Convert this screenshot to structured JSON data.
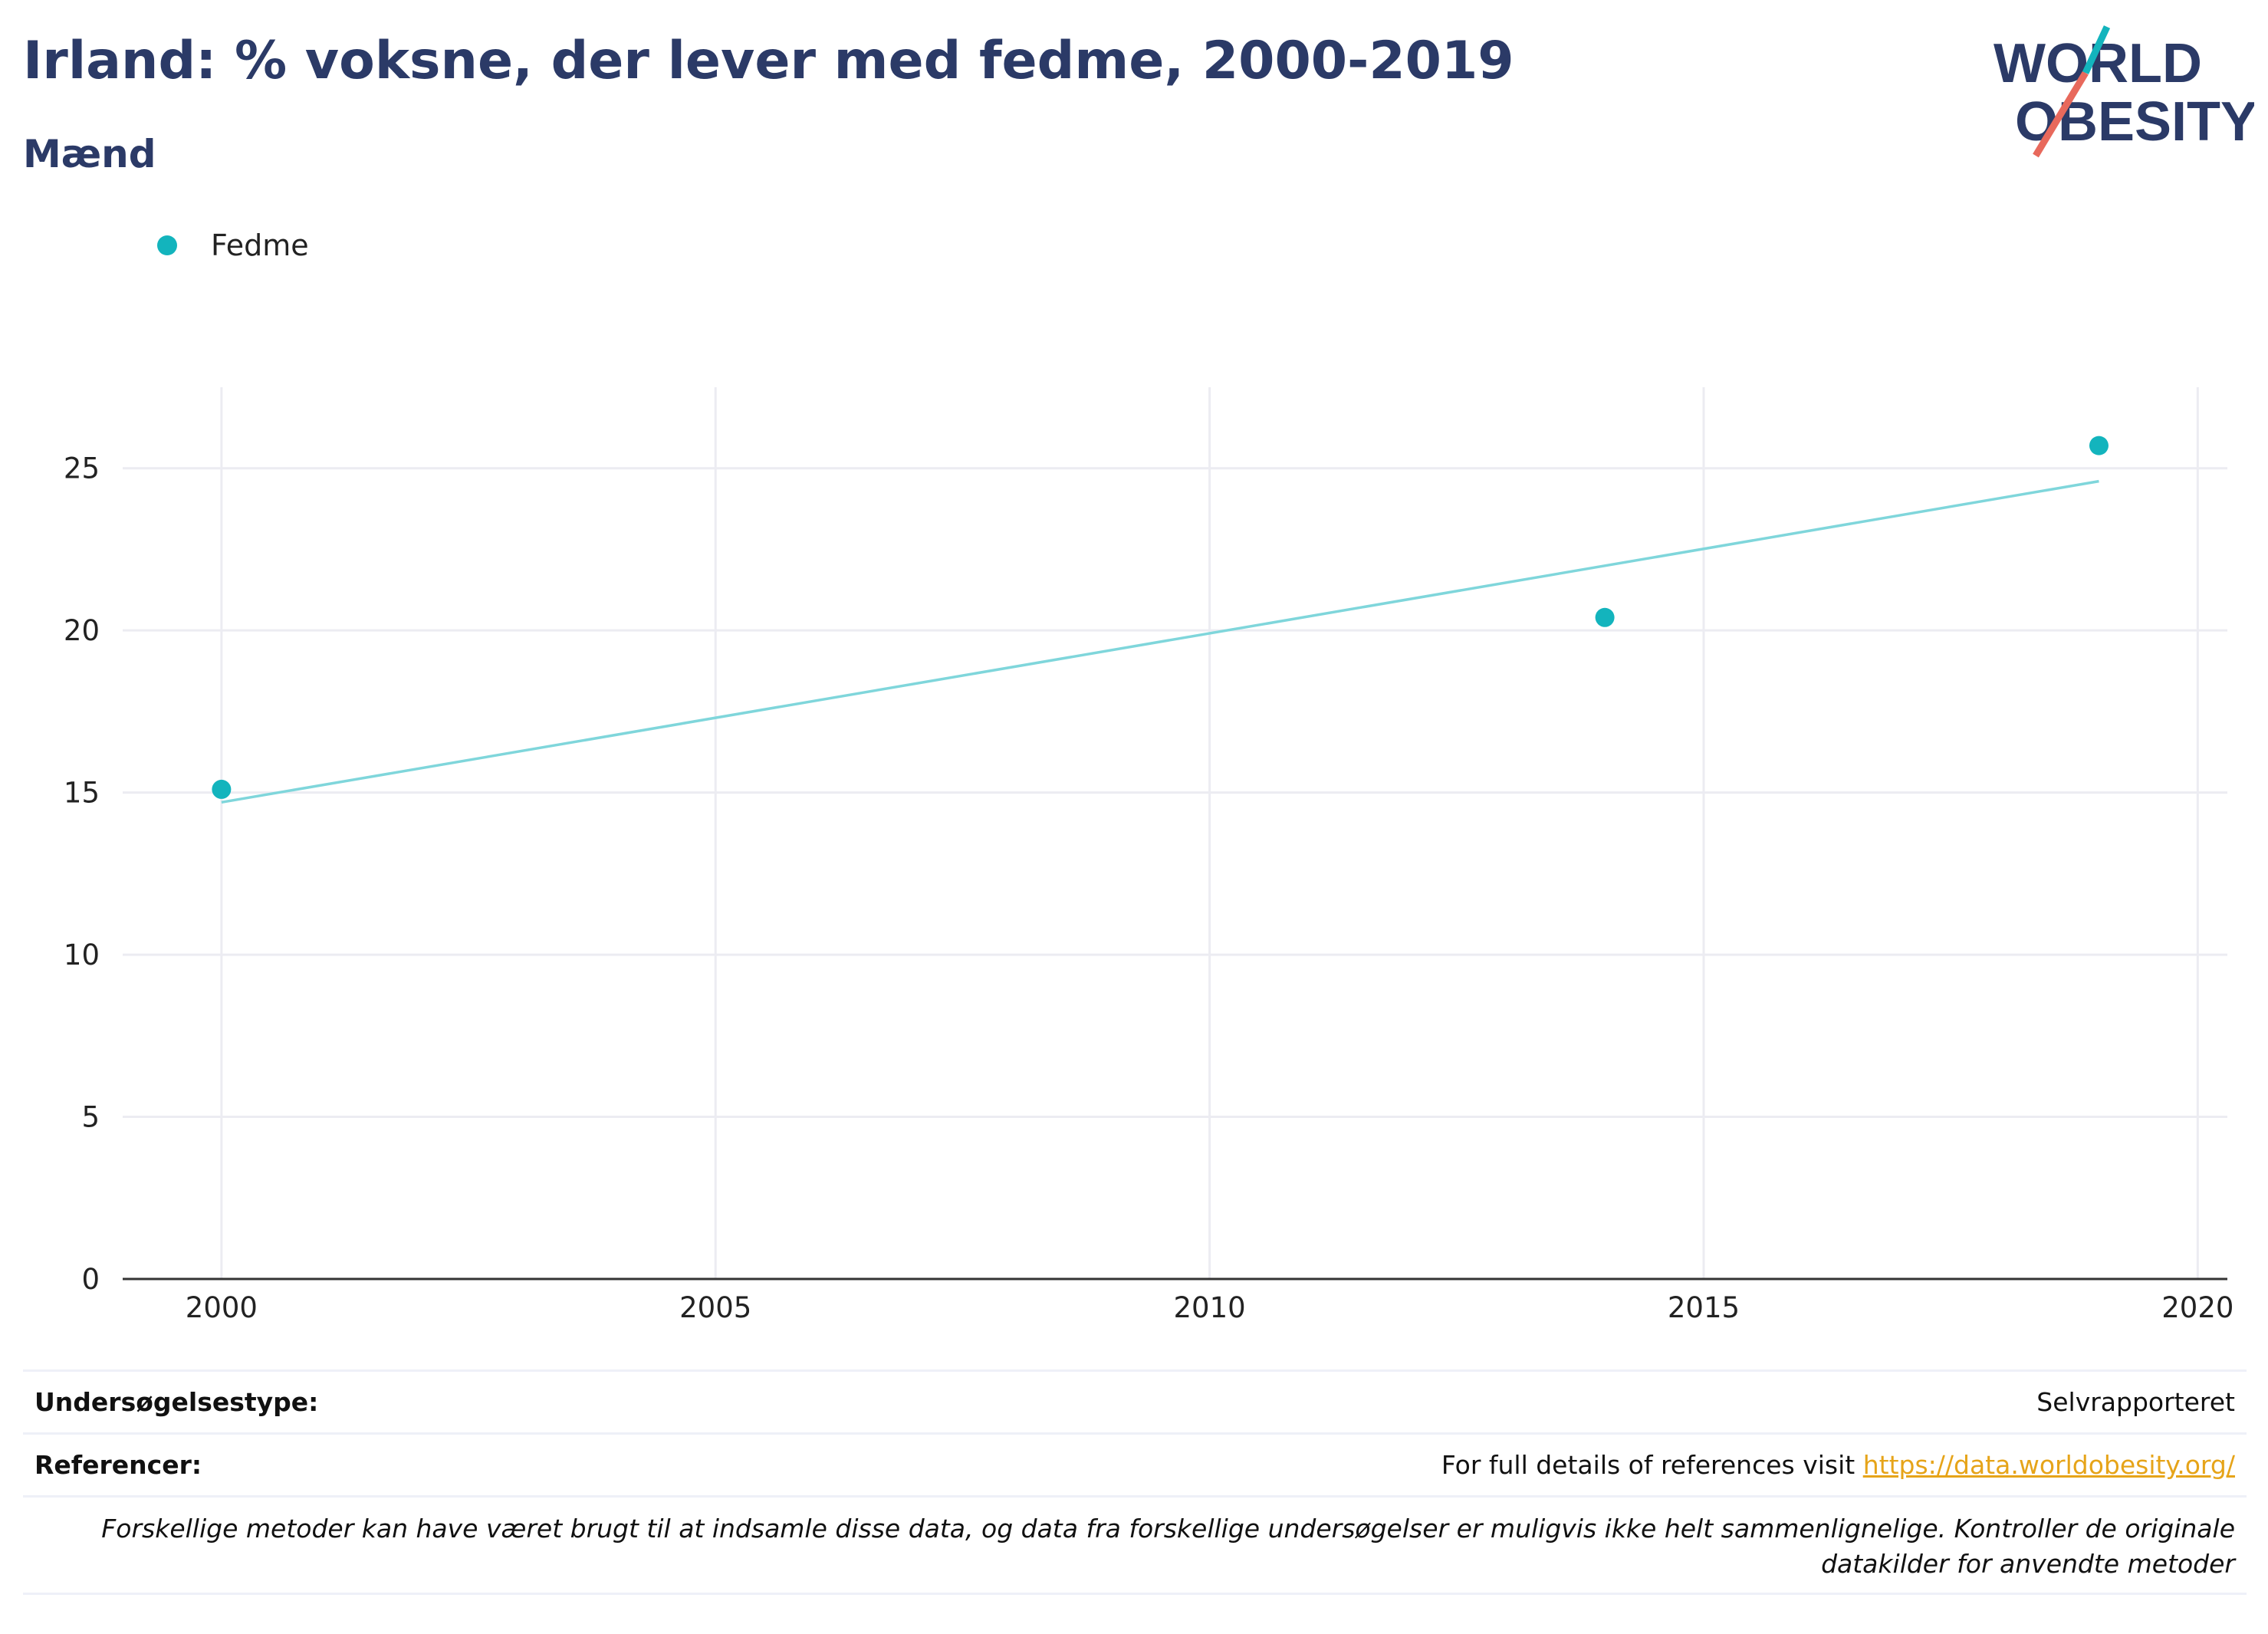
{
  "header": {
    "title": "Irland: % voksne, der lever med fedme, 2000-2019",
    "subtitle": "Mænd"
  },
  "logo": {
    "line1": "WORLD",
    "line2": "OBESITY"
  },
  "legend": {
    "label": "Fedme",
    "color": "#13b4bd"
  },
  "chart_data": {
    "type": "scatter",
    "title": "Irland: % voksne, der lever med fedme, 2000-2019",
    "subtitle": "Mænd",
    "xlabel": "",
    "ylabel": "",
    "xlim": [
      1999,
      2020.3
    ],
    "ylim": [
      0,
      27.5
    ],
    "x_ticks": [
      2000,
      2005,
      2010,
      2015,
      2020
    ],
    "y_ticks": [
      0,
      5,
      10,
      15,
      20,
      25
    ],
    "grid": true,
    "legend_position": "top-left",
    "series": [
      {
        "name": "Fedme",
        "color": "#13b4bd",
        "points": [
          {
            "x": 2000,
            "y": 15.1
          },
          {
            "x": 2014,
            "y": 20.4
          },
          {
            "x": 2019,
            "y": 25.7
          }
        ]
      }
    ],
    "trendline": {
      "color": "#7fd6db",
      "points": [
        {
          "x": 2000,
          "y": 14.7
        },
        {
          "x": 2019,
          "y": 24.6
        }
      ]
    }
  },
  "info": {
    "survey_type_label": "Undersøgelsestype:",
    "survey_type_value": "Selvrapporteret",
    "references_label": "Referencer:",
    "references_text": "For full details of references visit ",
    "references_link": "https://data.worldobesity.org/",
    "note": "Forskellige metoder kan have været brugt til at indsamle disse data, og data fra forskellige undersøgelser er muligvis ikke helt sammenlignelige. Kontroller de originale datakilder for anvendte metoder"
  }
}
